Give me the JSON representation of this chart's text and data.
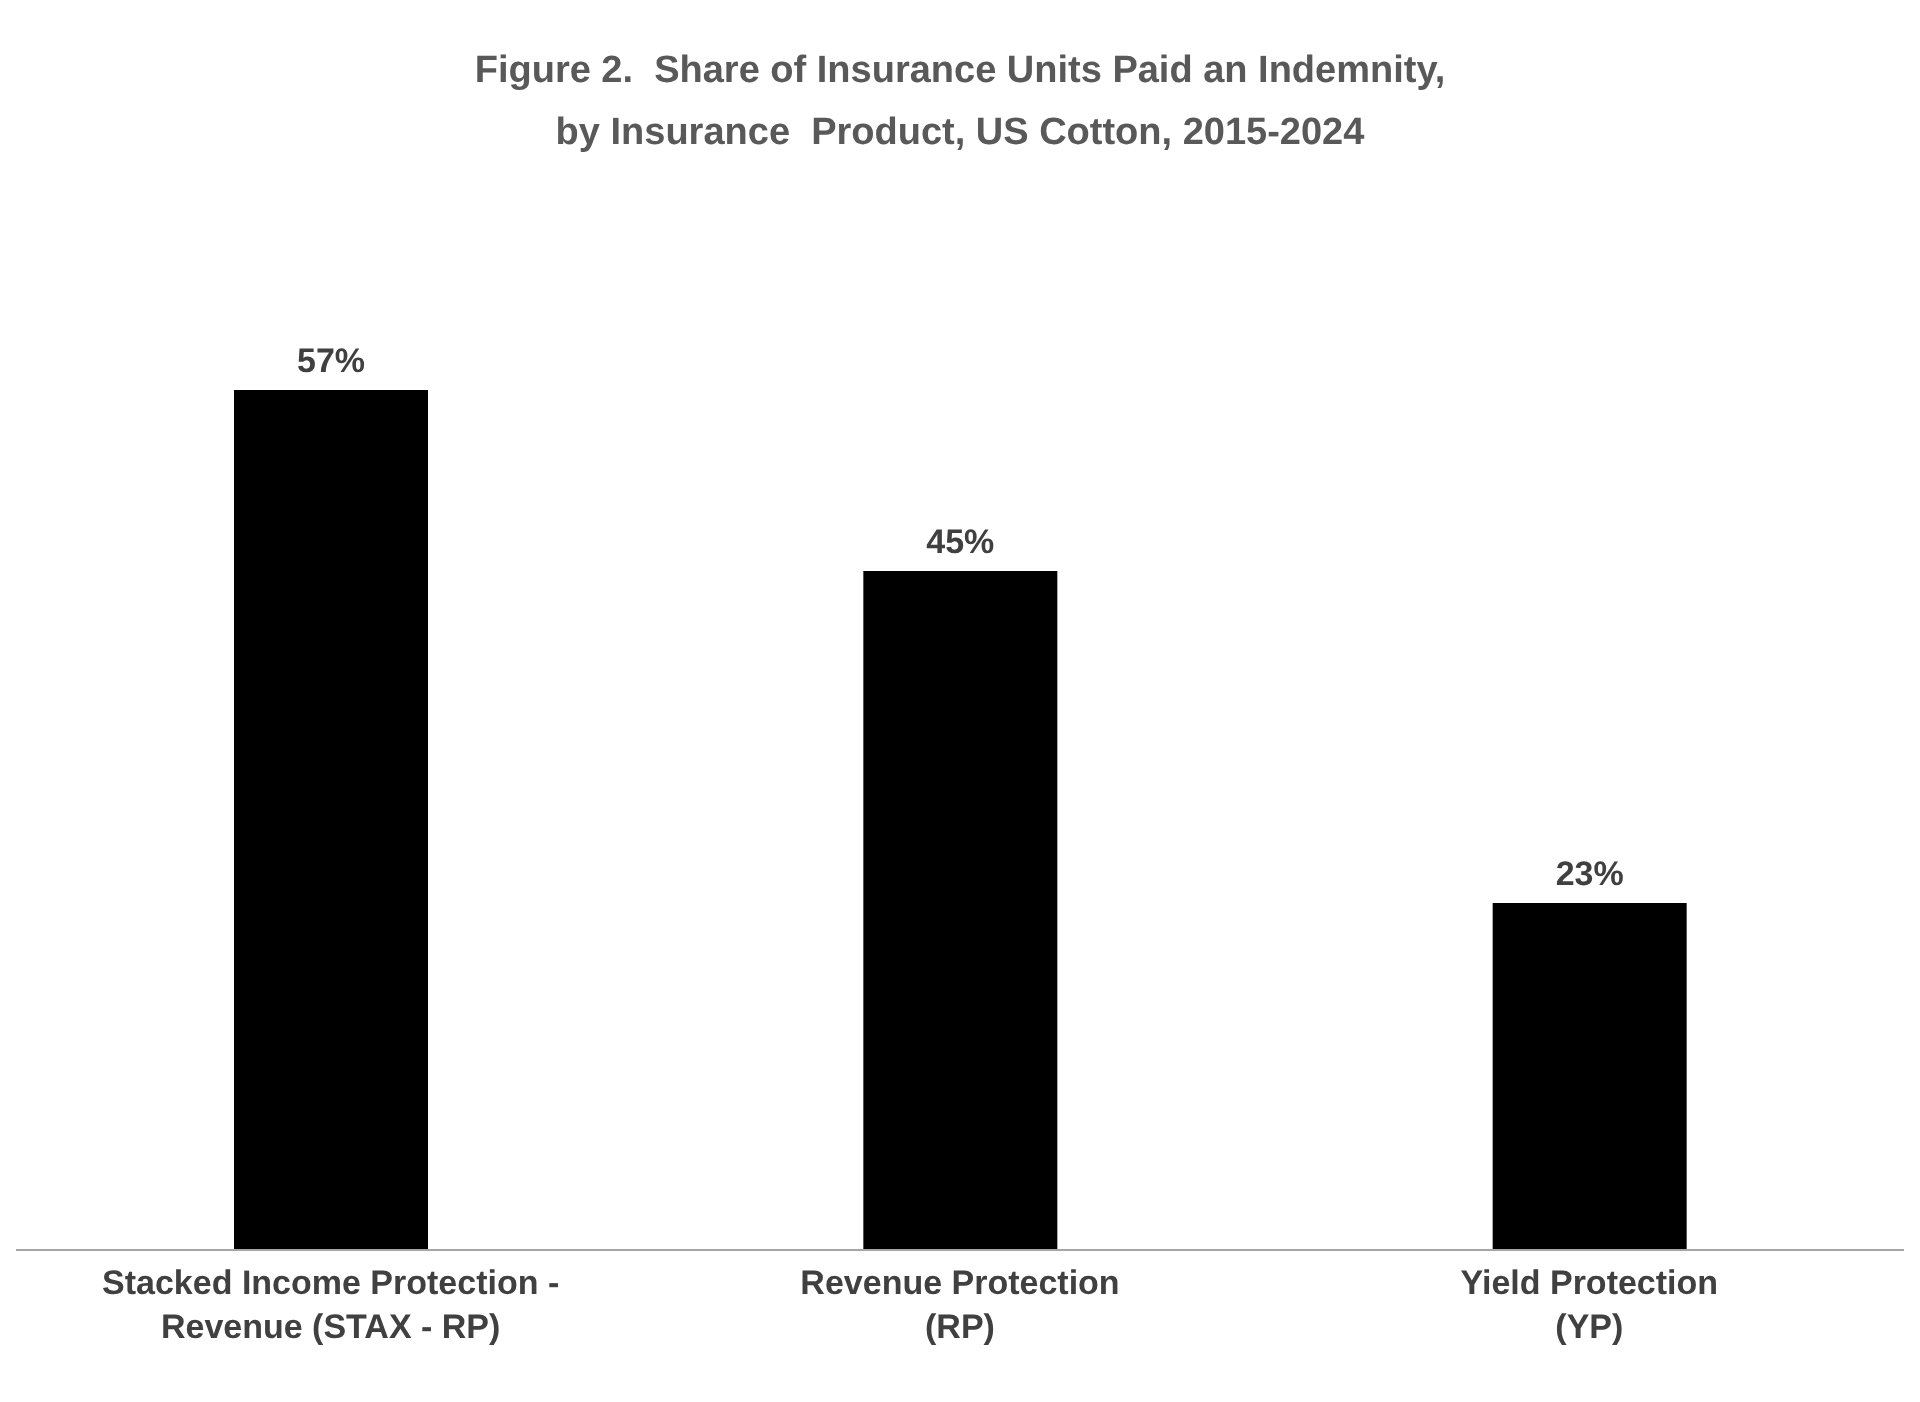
{
  "chart_data": {
    "type": "bar",
    "title": "Figure 2.  Share of Insurance Units Paid an Indemnity,\nby Insurance  Product, US Cotton, 2015-2024",
    "categories": [
      "Stacked Income Protection -\nRevenue (STAX - RP)",
      "Revenue Protection\n(RP)",
      "Yield Protection\n(YP)"
    ],
    "values": [
      57,
      45,
      23
    ],
    "color": "#000000",
    "value_labels": [
      "57%",
      "45%",
      "23%"
    ]
  }
}
